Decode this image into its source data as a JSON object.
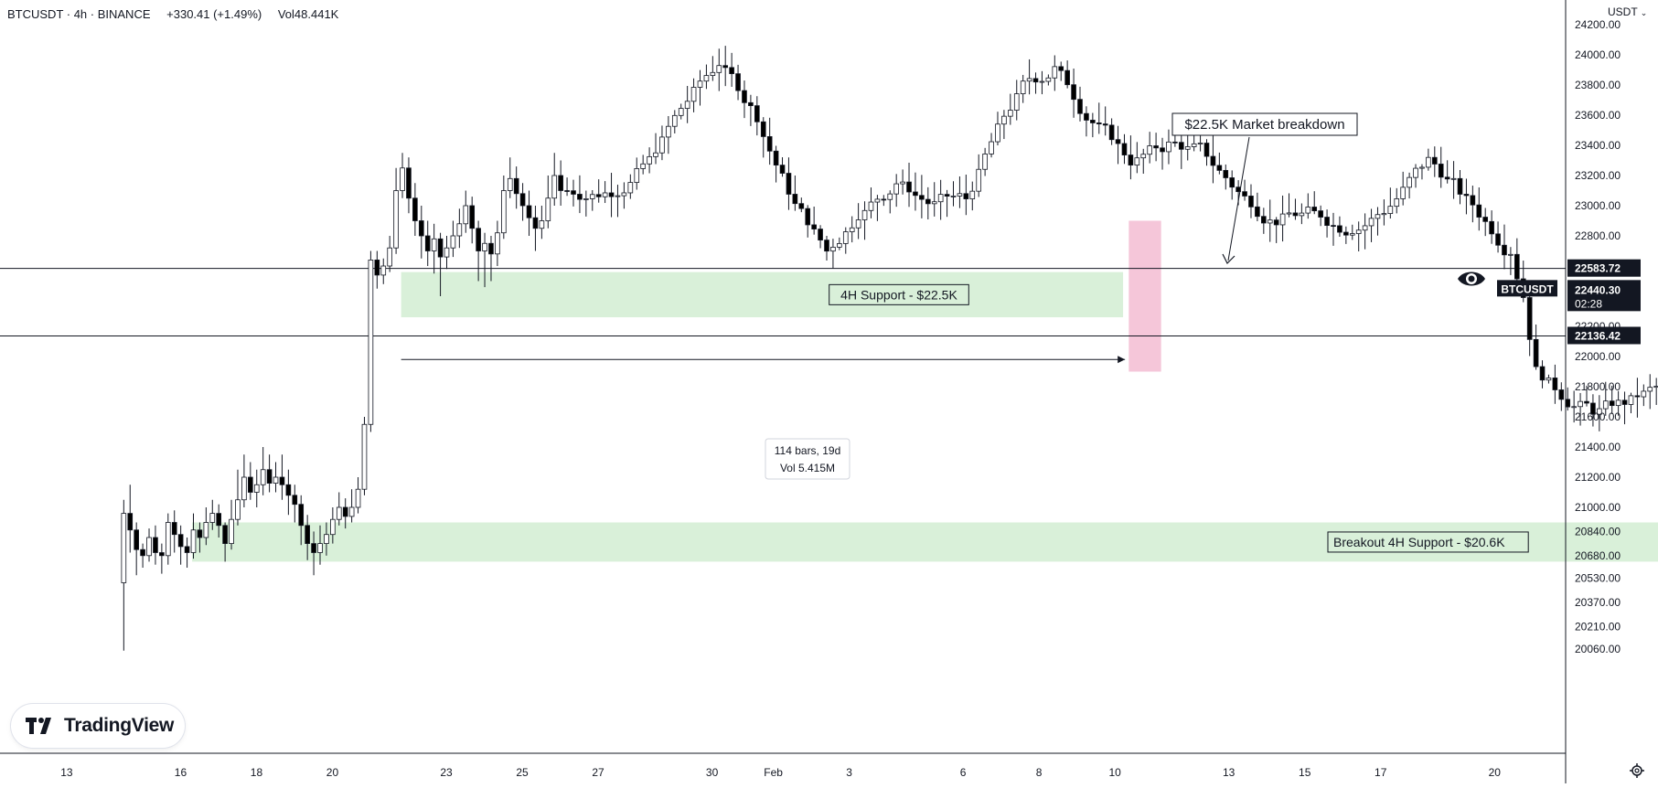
{
  "header": {
    "symbol": "BTCUSDT · 4h · BINANCE",
    "change": "+330.41 (+1.49%)",
    "volume": "Vol48.441K"
  },
  "currency": "USDT",
  "logo_text": "TradingView",
  "icons": {
    "logo": "tradingview-logo-icon",
    "eye": "eye-icon",
    "settings": "gear-icon",
    "dropdown": "chevron-down-icon"
  },
  "colors": {
    "up": "#ffffff",
    "down": "#000000",
    "zone": "#d9f0d9",
    "breakdown": "#f5c6d9"
  },
  "chart_data": {
    "type": "candlestick",
    "ylim": [
      20000,
      24200
    ],
    "price_ticks": [
      "24200.00",
      "24000.00",
      "23800.00",
      "23600.00",
      "23400.00",
      "23200.00",
      "23000.00",
      "22800.00",
      "22200.00",
      "22000.00",
      "21800.00",
      "21600.00",
      "21400.00",
      "21200.00",
      "21000.00",
      "20840.00",
      "20680.00",
      "20530.00",
      "20370.00",
      "20210.00",
      "20060.00"
    ],
    "date_ticks": [
      "13",
      "16",
      "18",
      "20",
      "23",
      "25",
      "27",
      "30",
      "Feb",
      "3",
      "6",
      "8",
      "10",
      "13",
      "15",
      "17",
      "20"
    ],
    "bars_per_day": 6,
    "candle_start_day": 14.5,
    "candles": [
      [
        20500,
        20960,
        20050,
        21050
      ],
      [
        20960,
        20850,
        20700,
        21150
      ],
      [
        20850,
        20720,
        20550,
        20900
      ],
      [
        20720,
        20680,
        20600,
        20760
      ],
      [
        20680,
        20800,
        20640,
        20860
      ],
      [
        20800,
        20700,
        20620,
        20880
      ],
      [
        20700,
        20680,
        20560,
        20760
      ],
      [
        20680,
        20900,
        20620,
        20960
      ],
      [
        20900,
        20820,
        20700,
        20980
      ],
      [
        20820,
        20740,
        20620,
        20880
      ],
      [
        20740,
        20700,
        20600,
        20800
      ],
      [
        20700,
        20850,
        20660,
        20960
      ],
      [
        20850,
        20800,
        20700,
        20900
      ],
      [
        20800,
        20900,
        20750,
        21000
      ],
      [
        20900,
        20960,
        20850,
        21050
      ],
      [
        20960,
        20880,
        20800,
        21020
      ],
      [
        20880,
        20760,
        20640,
        20900
      ],
      [
        20760,
        20920,
        20720,
        21050
      ],
      [
        20920,
        21050,
        20880,
        21250
      ],
      [
        21050,
        21200,
        21000,
        21350
      ],
      [
        21200,
        21100,
        21050,
        21300
      ],
      [
        21100,
        21150,
        21000,
        21250
      ],
      [
        21150,
        21250,
        21080,
        21400
      ],
      [
        21250,
        21160,
        21100,
        21350
      ],
      [
        21160,
        21200,
        21100,
        21300
      ],
      [
        21200,
        21150,
        21050,
        21350
      ],
      [
        21150,
        21080,
        20950,
        21250
      ],
      [
        21080,
        21020,
        20900,
        21150
      ],
      [
        21020,
        20880,
        20750,
        21080
      ],
      [
        20880,
        20760,
        20650,
        20950
      ],
      [
        20760,
        20700,
        20550,
        20840
      ],
      [
        20700,
        20760,
        20620,
        20880
      ],
      [
        20760,
        20820,
        20680,
        20900
      ],
      [
        20820,
        20920,
        20760,
        21000
      ],
      [
        20920,
        21000,
        20880,
        21100
      ],
      [
        21000,
        20940,
        20860,
        21060
      ],
      [
        20940,
        21000,
        20900,
        21120
      ],
      [
        21000,
        21120,
        20960,
        21200
      ],
      [
        21120,
        21550,
        21080,
        21600
      ],
      [
        21550,
        22640,
        21500,
        22700
      ],
      [
        22640,
        22540,
        22450,
        22700
      ],
      [
        22540,
        22600,
        22480,
        22650
      ],
      [
        22600,
        22720,
        22560,
        22800
      ],
      [
        22720,
        23100,
        22680,
        23250
      ],
      [
        23100,
        23250,
        23050,
        23350
      ],
      [
        23250,
        23050,
        22950,
        23320
      ],
      [
        23050,
        22900,
        22800,
        23150
      ],
      [
        22900,
        22800,
        22650,
        23000
      ],
      [
        22800,
        22700,
        22600,
        22900
      ],
      [
        22700,
        22780,
        22550,
        22880
      ],
      [
        22780,
        22660,
        22400,
        22820
      ],
      [
        22660,
        22720,
        22580,
        22800
      ],
      [
        22720,
        22800,
        22660,
        22900
      ],
      [
        22800,
        22880,
        22720,
        22980
      ],
      [
        22880,
        23000,
        22820,
        23100
      ],
      [
        23000,
        22850,
        22750,
        23060
      ],
      [
        22850,
        22700,
        22500,
        22900
      ],
      [
        22700,
        22750,
        22460,
        22820
      ],
      [
        22750,
        22680,
        22500,
        22800
      ],
      [
        22680,
        22820,
        22600,
        22900
      ],
      [
        22820,
        23100,
        22780,
        23200
      ],
      [
        23100,
        23180,
        23050,
        23320
      ],
      [
        23180,
        23080,
        22980,
        23260
      ],
      [
        23080,
        23000,
        22900,
        23150
      ],
      [
        23000,
        22920,
        22800,
        23100
      ],
      [
        22920,
        22850,
        22700,
        23000
      ],
      [
        22850,
        22900,
        22780,
        23000
      ],
      [
        22900,
        23050,
        22850,
        23200
      ],
      [
        23050,
        23200,
        23000,
        23350
      ],
      [
        23200,
        23100,
        23000,
        23300
      ]
    ],
    "candles_tail": "generated by script from trajectory points",
    "horizontal_lines": [
      22583.72,
      22136.42
    ],
    "price_labels": [
      {
        "label": "22583.72",
        "price": 22583.72
      },
      {
        "label": "BTCUSDT",
        "value": "22440.30",
        "countdown": "02:28",
        "price": 22440.3
      },
      {
        "label": "22136.42",
        "price": 22136.42
      }
    ],
    "zones": [
      {
        "label": "4H Support - $22.5K",
        "from_day": 21.8,
        "to_day": 40.8,
        "low": 22260,
        "high": 22560
      },
      {
        "label": "Breakout 4H Support - $20.6K",
        "from_day": 16.3,
        "to_day": 60.3,
        "low": 20640,
        "high": 20900
      },
      {
        "label": "",
        "from_day": 40.95,
        "to_day": 41.8,
        "low": 21900,
        "high": 22900
      }
    ],
    "annotations": [
      {
        "text": "$22.5K Market breakdown"
      },
      {
        "text": "114 bars, 19d",
        "text2": "Vol 5.415M"
      }
    ]
  }
}
